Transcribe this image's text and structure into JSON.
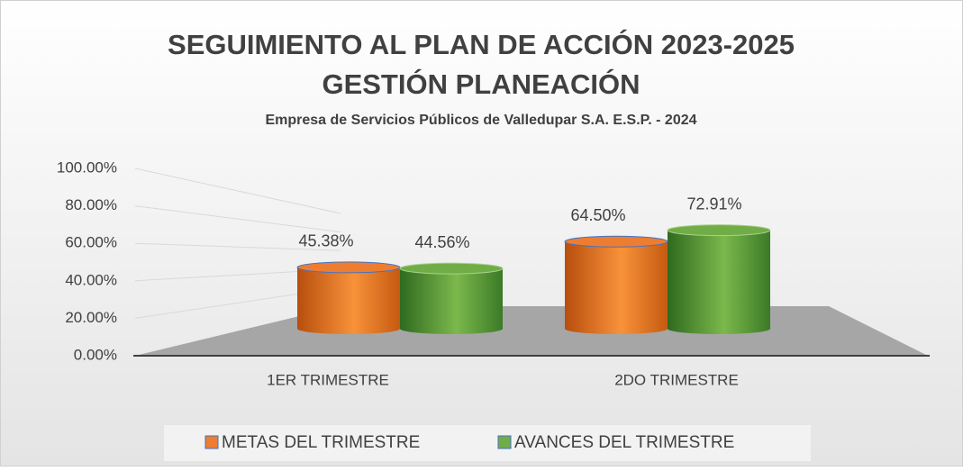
{
  "chart_data": {
    "type": "bar3d",
    "title": [
      "SEGUIMIENTO AL PLAN DE ACCIÓN 2023-2025",
      "GESTIÓN PLANEACIÓN"
    ],
    "subtitle": "Empresa de Servicios Públicos de Valledupar S.A. E.S.P. - 2024",
    "categories": [
      "1ER TRIMESTRE",
      "2DO TRIMESTRE"
    ],
    "series": [
      {
        "name": "METAS DEL TRIMESTRE",
        "color": "#ed7d31",
        "values": [
          45.38,
          64.5
        ],
        "value_labels": [
          "45.38%",
          "64.50%"
        ]
      },
      {
        "name": "AVANCES DEL TRIMESTRE",
        "color": "#70ad47",
        "values": [
          44.56,
          72.91
        ],
        "value_labels": [
          "44.56%",
          "72.91%"
        ]
      }
    ],
    "ylim": [
      0,
      100
    ],
    "yticks": [
      {
        "value": 0,
        "label": "0.00%"
      },
      {
        "value": 20,
        "label": "20.00%"
      },
      {
        "value": 40,
        "label": "40.00%"
      },
      {
        "value": 60,
        "label": "60.00%"
      },
      {
        "value": 80,
        "label": "80.00%"
      },
      {
        "value": 100,
        "label": "100.00%"
      }
    ],
    "grid": true,
    "legend": "bottom"
  }
}
